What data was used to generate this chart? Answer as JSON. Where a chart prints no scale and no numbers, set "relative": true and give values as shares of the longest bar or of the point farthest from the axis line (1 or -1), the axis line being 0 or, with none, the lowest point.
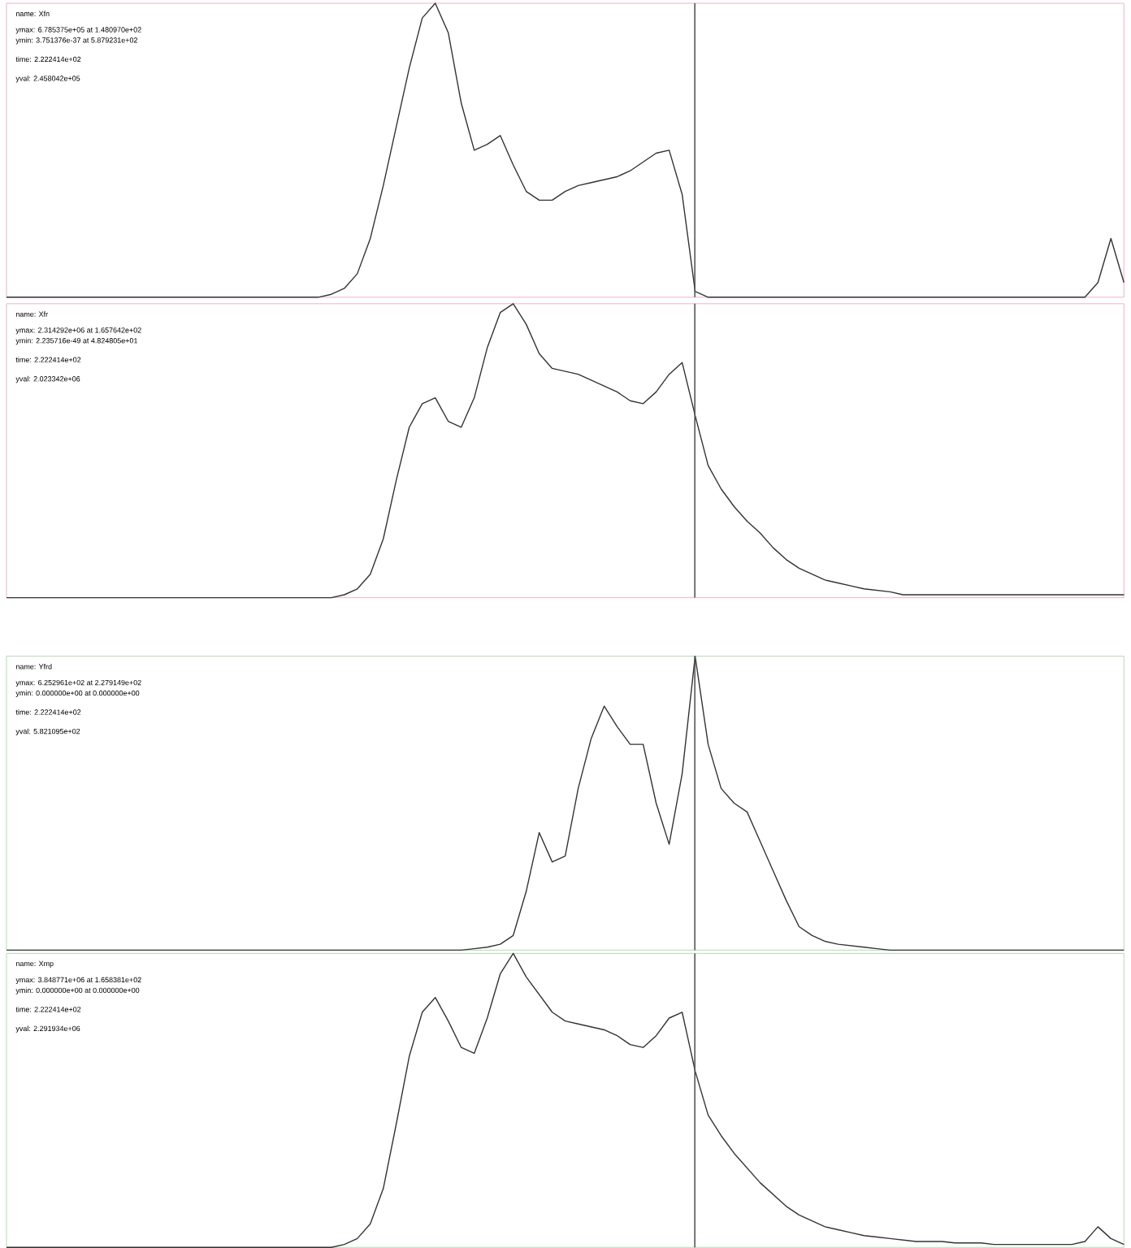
{
  "chart_data": [
    {
      "type": "line",
      "relative": true,
      "color": "#333333",
      "title": "name: Xfn",
      "annotations": [
        "ymax: 6.785375e+05 at 1.480970e+02",
        "ymin: 3.751376e-37 at 5.879231e+02",
        "time: 2.222414e+02",
        "yval: 2.458042e+05"
      ],
      "categories": [
        null,
        null,
        null,
        null,
        null,
        null,
        null,
        null,
        null,
        null,
        null,
        null,
        null,
        null,
        null,
        null,
        null,
        null,
        null,
        null,
        null,
        null,
        null,
        null,
        null,
        null,
        null,
        null,
        null,
        null,
        null,
        null,
        null,
        null,
        null,
        null,
        null,
        null,
        null,
        null,
        null,
        null,
        null,
        null,
        null,
        null,
        null,
        null,
        null,
        null,
        null,
        null,
        null,
        null,
        null,
        null,
        null,
        null,
        null,
        null,
        null,
        null,
        null,
        null,
        null,
        null,
        null,
        null,
        null,
        null,
        null,
        null,
        null,
        null,
        null,
        null,
        null,
        null,
        null,
        null,
        null,
        null,
        null,
        null,
        null,
        null,
        null
      ],
      "values": [
        0,
        0,
        0,
        0,
        0,
        0,
        0,
        0,
        0,
        0,
        0,
        0,
        0,
        0,
        0,
        0,
        0,
        0,
        0,
        0,
        0,
        0,
        0,
        0,
        0,
        0.01,
        0.03,
        0.08,
        0.2,
        0.38,
        0.58,
        0.78,
        0.95,
        1.0,
        0.9,
        0.66,
        0.5,
        0.52,
        0.55,
        0.45,
        0.36,
        0.33,
        0.33,
        0.36,
        0.38,
        0.39,
        0.4,
        0.41,
        0.43,
        0.46,
        0.49,
        0.5,
        0.35,
        0.02,
        0,
        0,
        0,
        0,
        0,
        0,
        0,
        0,
        0,
        0,
        0,
        0,
        0,
        0,
        0,
        0,
        0,
        0,
        0,
        0,
        0,
        0,
        0,
        0,
        0,
        0,
        0,
        0,
        0,
        0,
        0.05,
        0.2,
        0.05
      ]
    },
    {
      "type": "line",
      "relative": true,
      "color": "#333333",
      "title": "name: Xfr",
      "annotations": [
        "ymax: 2.314292e+06 at 1.657642e+02",
        "ymin: 2.235716e-49 at 4.824805e+01",
        "time: 2.222414e+02",
        "yval: 2.023342e+06"
      ],
      "categories": [
        null,
        null,
        null,
        null,
        null,
        null,
        null,
        null,
        null,
        null,
        null,
        null,
        null,
        null,
        null,
        null,
        null,
        null,
        null,
        null,
        null,
        null,
        null,
        null,
        null,
        null,
        null,
        null,
        null,
        null,
        null,
        null,
        null,
        null,
        null,
        null,
        null,
        null,
        null,
        null,
        null,
        null,
        null,
        null,
        null,
        null,
        null,
        null,
        null,
        null,
        null,
        null,
        null,
        null,
        null,
        null,
        null,
        null,
        null,
        null,
        null,
        null,
        null,
        null,
        null,
        null,
        null,
        null,
        null,
        null,
        null,
        null,
        null,
        null,
        null,
        null,
        null,
        null,
        null,
        null,
        null,
        null,
        null,
        null,
        null,
        null,
        null
      ],
      "values": [
        0,
        0,
        0,
        0,
        0,
        0,
        0,
        0,
        0,
        0,
        0,
        0,
        0,
        0,
        0,
        0,
        0,
        0,
        0,
        0,
        0,
        0,
        0,
        0,
        0,
        0,
        0.01,
        0.03,
        0.08,
        0.2,
        0.4,
        0.58,
        0.66,
        0.68,
        0.6,
        0.58,
        0.68,
        0.85,
        0.97,
        1.0,
        0.93,
        0.83,
        0.78,
        0.77,
        0.76,
        0.74,
        0.72,
        0.7,
        0.67,
        0.66,
        0.7,
        0.76,
        0.8,
        0.62,
        0.45,
        0.37,
        0.31,
        0.26,
        0.22,
        0.17,
        0.13,
        0.1,
        0.08,
        0.06,
        0.05,
        0.04,
        0.03,
        0.025,
        0.02,
        0.01,
        0.01,
        0.01,
        0.01,
        0.01,
        0.01,
        0.01,
        0.01,
        0.01,
        0.01,
        0.01,
        0.01,
        0.01,
        0.01,
        0.01,
        0.01,
        0.01,
        0.01
      ]
    },
    {
      "type": "line",
      "relative": true,
      "color": "#333333",
      "title": "name: Yfrd",
      "annotations": [
        "ymax: 6.252961e+02 at 2.279149e+02",
        "ymin: 0.000000e+00 at 0.000000e+00",
        "time: 2.222414e+02",
        "yval: 5.821095e+02"
      ],
      "categories": [
        null,
        null,
        null,
        null,
        null,
        null,
        null,
        null,
        null,
        null,
        null,
        null,
        null,
        null,
        null,
        null,
        null,
        null,
        null,
        null,
        null,
        null,
        null,
        null,
        null,
        null,
        null,
        null,
        null,
        null,
        null,
        null,
        null,
        null,
        null,
        null,
        null,
        null,
        null,
        null,
        null,
        null,
        null,
        null,
        null,
        null,
        null,
        null,
        null,
        null,
        null,
        null,
        null,
        null,
        null,
        null,
        null,
        null,
        null,
        null,
        null,
        null,
        null,
        null,
        null,
        null,
        null,
        null,
        null,
        null,
        null,
        null,
        null,
        null,
        null,
        null,
        null,
        null,
        null,
        null,
        null,
        null,
        null,
        null,
        null,
        null,
        null
      ],
      "values": [
        0,
        0,
        0,
        0,
        0,
        0,
        0,
        0,
        0,
        0,
        0,
        0,
        0,
        0,
        0,
        0,
        0,
        0,
        0,
        0,
        0,
        0,
        0,
        0,
        0,
        0,
        0,
        0,
        0,
        0,
        0,
        0,
        0,
        0,
        0,
        0,
        0.005,
        0.01,
        0.02,
        0.05,
        0.2,
        0.4,
        0.3,
        0.32,
        0.55,
        0.72,
        0.83,
        0.76,
        0.7,
        0.7,
        0.5,
        0.36,
        0.6,
        1.0,
        0.7,
        0.55,
        0.5,
        0.47,
        0.37,
        0.27,
        0.17,
        0.08,
        0.05,
        0.03,
        0.02,
        0.015,
        0.01,
        0.005,
        0,
        0,
        0,
        0,
        0,
        0,
        0,
        0,
        0,
        0,
        0,
        0,
        0,
        0,
        0,
        0,
        0,
        0,
        0
      ]
    },
    {
      "type": "line",
      "relative": true,
      "color": "#333333",
      "title": "name: Xmp",
      "annotations": [
        "ymax: 3.848771e+06 at 1.658381e+02",
        "ymin: 0.000000e+00 at 0.000000e+00",
        "time: 2.222414e+02",
        "yval: 2.291934e+06"
      ],
      "categories": [
        null,
        null,
        null,
        null,
        null,
        null,
        null,
        null,
        null,
        null,
        null,
        null,
        null,
        null,
        null,
        null,
        null,
        null,
        null,
        null,
        null,
        null,
        null,
        null,
        null,
        null,
        null,
        null,
        null,
        null,
        null,
        null,
        null,
        null,
        null,
        null,
        null,
        null,
        null,
        null,
        null,
        null,
        null,
        null,
        null,
        null,
        null,
        null,
        null,
        null,
        null,
        null,
        null,
        null,
        null,
        null,
        null,
        null,
        null,
        null,
        null,
        null,
        null,
        null,
        null,
        null,
        null,
        null,
        null,
        null,
        null,
        null,
        null,
        null,
        null,
        null,
        null,
        null,
        null,
        null,
        null,
        null,
        null,
        null,
        null,
        null,
        null
      ],
      "values": [
        0,
        0,
        0,
        0,
        0,
        0,
        0,
        0,
        0,
        0,
        0,
        0,
        0,
        0,
        0,
        0,
        0,
        0,
        0,
        0,
        0,
        0,
        0,
        0,
        0,
        0,
        0.01,
        0.03,
        0.08,
        0.2,
        0.42,
        0.65,
        0.8,
        0.85,
        0.77,
        0.68,
        0.66,
        0.78,
        0.93,
        1.0,
        0.92,
        0.86,
        0.8,
        0.77,
        0.76,
        0.75,
        0.74,
        0.72,
        0.69,
        0.68,
        0.72,
        0.78,
        0.8,
        0.6,
        0.45,
        0.38,
        0.32,
        0.27,
        0.22,
        0.18,
        0.14,
        0.11,
        0.09,
        0.07,
        0.06,
        0.05,
        0.04,
        0.035,
        0.03,
        0.025,
        0.02,
        0.02,
        0.02,
        0.015,
        0.015,
        0.015,
        0.01,
        0.01,
        0.01,
        0.01,
        0.01,
        0.01,
        0.01,
        0.02,
        0.07,
        0.03,
        0.01
      ]
    }
  ]
}
